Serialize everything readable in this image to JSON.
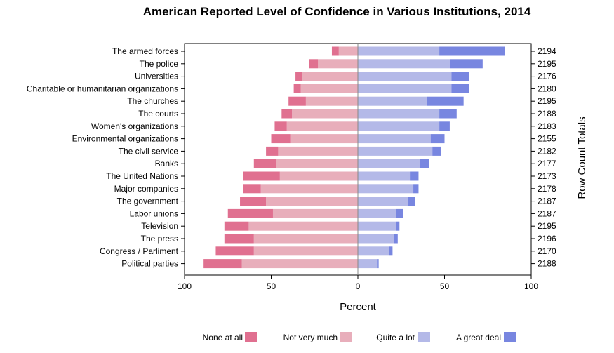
{
  "chart_data": {
    "type": "bar",
    "orientation": "horizontal-diverging",
    "title": "American Reported Level of Confidence in Various Institutions, 2014",
    "xlabel": "Percent",
    "right_axis_label": "Row Count Totals",
    "xlim": [
      -100,
      100
    ],
    "xticks": [
      "100",
      "50",
      "0",
      "50",
      "100"
    ],
    "categories": [
      "The armed forces",
      "The police",
      "Universities",
      "Charitable or humanitarian organizations",
      "The churches",
      "The courts",
      "Women's organizations",
      "Environmental organizations",
      "The civil service",
      "Banks",
      "The United Nations",
      "Major companies",
      "The government",
      "Labor unions",
      "Television",
      "The press",
      "Congress / Parliment",
      "Political parties"
    ],
    "row_totals": [
      "2194",
      "2195",
      "2176",
      "2180",
      "2195",
      "2188",
      "2183",
      "2155",
      "2182",
      "2177",
      "2173",
      "2178",
      "2187",
      "2187",
      "2195",
      "2196",
      "2170",
      "2188"
    ],
    "series": [
      {
        "name": "None at all",
        "side": "negative",
        "color": "#E07090",
        "values": [
          4,
          5,
          4,
          4,
          10,
          6,
          7,
          11,
          7,
          13,
          21,
          10,
          15,
          26,
          14,
          17,
          22,
          22
        ]
      },
      {
        "name": "Not very much",
        "side": "negative",
        "color": "#E8AEBB",
        "values": [
          11,
          23,
          32,
          33,
          30,
          38,
          41,
          39,
          46,
          47,
          45,
          56,
          53,
          49,
          63,
          60,
          60,
          67
        ]
      },
      {
        "name": "Quite a lot",
        "side": "positive",
        "color": "#B4B9E8",
        "values": [
          47,
          53,
          54,
          54,
          40,
          47,
          47,
          42,
          43,
          36,
          30,
          32,
          29,
          22,
          22,
          21,
          18,
          11
        ]
      },
      {
        "name": "A great deal",
        "side": "positive",
        "color": "#7886E0",
        "values": [
          38,
          19,
          10,
          10,
          21,
          10,
          6,
          8,
          5,
          5,
          5,
          3,
          4,
          4,
          2,
          2,
          2,
          1
        ]
      }
    ],
    "legend_position": "bottom",
    "grid": false
  }
}
